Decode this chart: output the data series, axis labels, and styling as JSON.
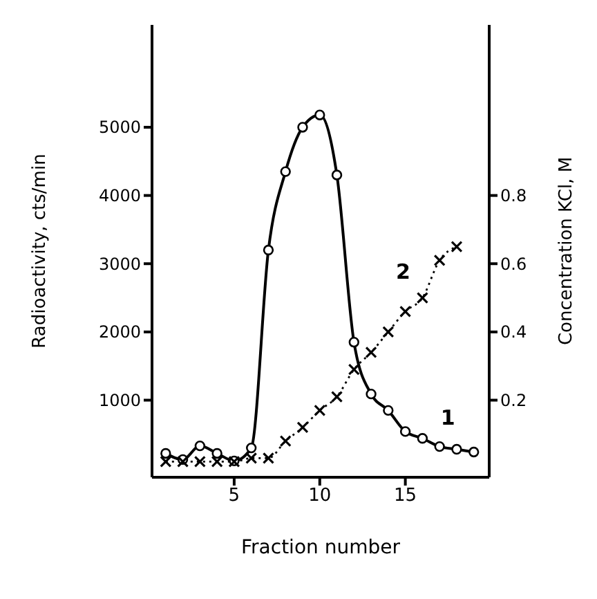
{
  "chart_data": {
    "type": "line",
    "xlabel": "Fraction number",
    "ylabel": "Radioactivity, cts/min",
    "y2label": "Concentration KCl, M",
    "x": [
      1,
      2,
      3,
      4,
      5,
      6,
      7,
      8,
      9,
      10,
      11,
      12,
      13,
      14,
      15,
      16,
      17,
      18,
      19
    ],
    "series": [
      {
        "name": "1",
        "color": "#000000",
        "marker": "circle",
        "line_style": "solid",
        "values": [
          220,
          130,
          330,
          220,
          110,
          300,
          3200,
          4350,
          5000,
          5180,
          4300,
          1850,
          1090,
          850,
          540,
          440,
          320,
          280,
          240
        ]
      },
      {
        "name": "2",
        "color": "#000000",
        "marker": "cross",
        "line_style": "dotted",
        "axis": "y2",
        "x": [
          1,
          2,
          3,
          4,
          5,
          6,
          7,
          8,
          9,
          10,
          11,
          12,
          13,
          14,
          15,
          16,
          17,
          18
        ],
        "values": [
          0.02,
          0.02,
          0.02,
          0.02,
          0.02,
          0.03,
          0.03,
          0.08,
          0.12,
          0.17,
          0.21,
          0.29,
          0.34,
          0.4,
          0.46,
          0.5,
          0.61,
          0.65
        ]
      }
    ],
    "xlim": [
      0.2,
      19.9
    ],
    "xticks": [
      5,
      10,
      15
    ],
    "ylim": [
      -130,
      6500
    ],
    "yticks": [
      1000,
      2000,
      3000,
      4000,
      5000
    ],
    "y2lim": [
      -0.026,
      1.3
    ],
    "y2ticks": [
      0.2,
      0.4,
      0.6,
      0.8
    ],
    "grid": false
  }
}
